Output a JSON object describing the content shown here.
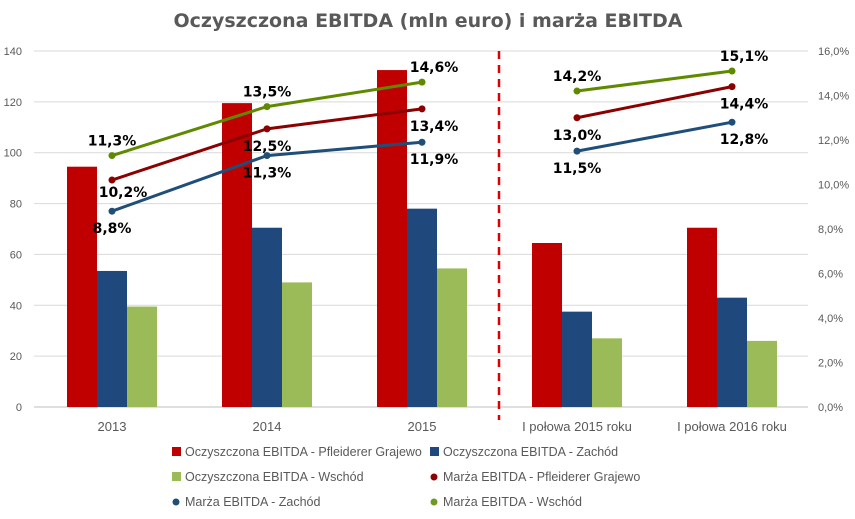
{
  "chart_data": {
    "type": "bar",
    "title": "Oczyszczona EBITDA (mln euro) i marża EBITDA",
    "categories": [
      "2013",
      "2014",
      "2015",
      "I połowa 2015 roku",
      "I połowa 2016 roku"
    ],
    "ylim": [
      0,
      140
    ],
    "y_ticks": [
      "0",
      "20",
      "40",
      "60",
      "80",
      "100",
      "120",
      "140"
    ],
    "y2lim": [
      0,
      16
    ],
    "y2_ticks": [
      "0,0%",
      "2,0%",
      "4,0%",
      "6,0%",
      "8,0%",
      "10,0%",
      "12,0%",
      "14,0%",
      "16,0%"
    ],
    "grid": true,
    "legend_position": "bottom",
    "separator": "dashed vertical line between 2015 and I połowa 2015 roku",
    "bar_series": [
      {
        "name": "Oczyszczona EBITDA - Pfleiderer Grajewo",
        "color": "#C00000",
        "values": [
          94.5,
          119.5,
          132.5,
          64.5,
          70.5
        ]
      },
      {
        "name": "Oczyszczona EBITDA - Zachód",
        "color": "#1F497D",
        "values": [
          53.5,
          70.5,
          78,
          37.5,
          43
        ]
      },
      {
        "name": "Oczyszczona EBITDA - Wschód",
        "color": "#9BBB59",
        "values": [
          39.5,
          49,
          54.5,
          27,
          26
        ]
      }
    ],
    "line_series": [
      {
        "name": "Marża EBITDA - Pfleiderer Grajewo",
        "color": "#8B0000",
        "values": [
          10.2,
          12.5,
          13.4,
          13.0,
          14.4
        ],
        "labels": [
          null,
          "12,5%",
          "13,4%",
          "13,0%",
          "14,4%"
        ],
        "label_pos": [
          "below",
          "below",
          "below",
          "below",
          "below"
        ]
      },
      {
        "name": "Marża EBITDA - Zachód",
        "color": "#1F4E79",
        "values": [
          8.8,
          11.3,
          11.9,
          11.5,
          12.8
        ],
        "labels": [
          "8,8%",
          "11,3%",
          "11,9%",
          "11,5%",
          "12,8%"
        ],
        "label_pos": [
          "below",
          "below",
          "below",
          "below",
          "below"
        ]
      },
      {
        "name": "Marża EBITDA - Wschód",
        "color": "#5F8A00",
        "values": [
          11.3,
          13.5,
          14.6,
          14.2,
          15.1
        ],
        "labels": [
          "11,3%",
          "13,5%",
          "14,6%",
          "14,2%",
          "15,1%"
        ],
        "label_pos": [
          "above",
          "above",
          "above",
          "above",
          "above"
        ]
      }
    ],
    "extra_labels": [
      {
        "text": "10,2%",
        "category": 0,
        "series": 0
      }
    ]
  },
  "legend": [
    {
      "name": "Oczyszczona EBITDA - Pfleiderer Grajewo",
      "kind": "bar",
      "color": "#C00000"
    },
    {
      "name": "Oczyszczona EBITDA - Zachód",
      "kind": "bar",
      "color": "#1F497D"
    },
    {
      "name": "Oczyszczona EBITDA - Wschód",
      "kind": "bar",
      "color": "#9BBB59"
    },
    {
      "name": "Marża EBITDA - Pfleiderer Grajewo",
      "kind": "line",
      "color": "#8B0000"
    },
    {
      "name": "Marża EBITDA - Zachód",
      "kind": "line",
      "color": "#1F4E79"
    },
    {
      "name": "Marża EBITDA - Wschód",
      "kind": "line",
      "color": "#6E9A1F"
    }
  ]
}
